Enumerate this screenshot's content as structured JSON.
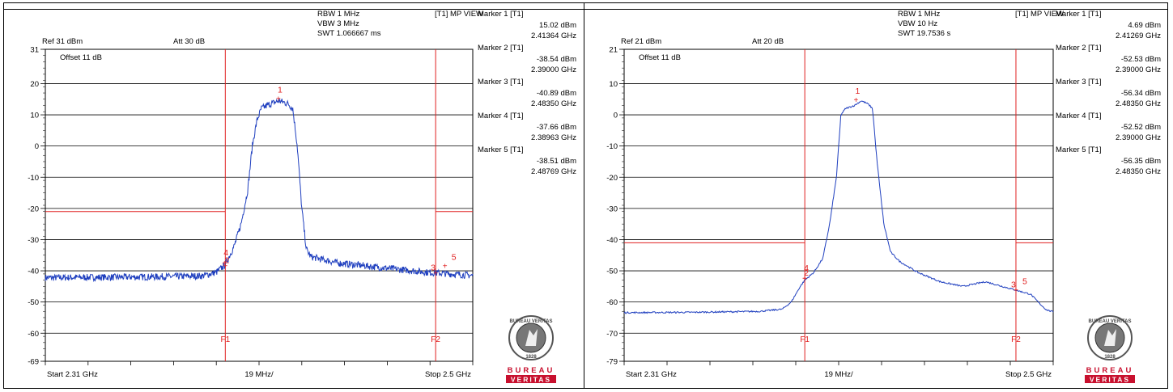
{
  "panels": [
    {
      "rbw": "RBW 1 MHz",
      "vbw": "VBW 3 MHz",
      "swt": "SWT 1.066667 ms",
      "view": "[T1] MP VIEW",
      "ref": "Ref 31 dBm",
      "att": "Att  30 dB",
      "offset": "Offset 11 dB",
      "start": "Start 2.31 GHz",
      "span": "19 MHz/",
      "stop": "Stop 2.5 GHz",
      "markers": [
        {
          "title": "Marker 1 [T1]",
          "level": "15.02 dBm",
          "freq": "2.41364 GHz"
        },
        {
          "title": "Marker 2 [T1]",
          "level": "-38.54 dBm",
          "freq": "2.39000 GHz"
        },
        {
          "title": "Marker 3 [T1]",
          "level": "-40.89 dBm",
          "freq": "2.48350 GHz"
        },
        {
          "title": "Marker 4 [T1]",
          "level": "-37.66 dBm",
          "freq": "2.38963 GHz"
        },
        {
          "title": "Marker 5 [T1]",
          "level": "-38.51 dBm",
          "freq": "2.48769 GHz"
        }
      ],
      "logo": {
        "top": "BUREAU VERITAS",
        "year": "1828",
        "bottom1": "BUREAU",
        "bottom2": "VERITAS"
      }
    },
    {
      "rbw": "RBW 1 MHz",
      "vbw": "VBW 10 Hz",
      "swt": "SWT 19.7536 s",
      "view": "[T1] MP VIEW",
      "ref": "Ref 21 dBm",
      "att": "Att  20 dB",
      "offset": "Offset 11 dB",
      "start": "Start 2.31 GHz",
      "span": "19 MHz/",
      "stop": "Stop 2.5 GHz",
      "markers": [
        {
          "title": "Marker 1 [T1]",
          "level": "4.69 dBm",
          "freq": "2.41269 GHz"
        },
        {
          "title": "Marker 2 [T1]",
          "level": "-52.53 dBm",
          "freq": "2.39000 GHz"
        },
        {
          "title": "Marker 3 [T1]",
          "level": "-56.34 dBm",
          "freq": "2.48350 GHz"
        },
        {
          "title": "Marker 4 [T1]",
          "level": "-52.52 dBm",
          "freq": "2.39000 GHz"
        },
        {
          "title": "Marker 5 [T1]",
          "level": "-56.35 dBm",
          "freq": "2.48350 GHz"
        }
      ],
      "logo": {
        "top": "BUREAU VERITAS",
        "year": "1828",
        "bottom1": "BUREAU",
        "bottom2": "VERITAS"
      }
    }
  ],
  "chart_data": [
    {
      "type": "line",
      "xlim_ghz": [
        2.31,
        2.5
      ],
      "ylim": [
        -69,
        31
      ],
      "y_ticks": [
        "31",
        "20",
        "10",
        "0",
        "-10",
        "-20",
        "-30",
        "-40",
        "-50",
        "-60",
        "-69"
      ],
      "y_tick_values": [
        31,
        20,
        10,
        0,
        -10,
        -20,
        -30,
        -40,
        -50,
        -60,
        -69
      ],
      "grid": true,
      "limit_level_dbm": -21,
      "f1_ghz": 2.39,
      "f1_label": "F1",
      "f2_ghz": 2.4835,
      "f2_label": "F2",
      "trace_color": "#1f3fbf",
      "marker_color": "#e02020",
      "trace": {
        "x": [
          2.31,
          2.33,
          2.35,
          2.37,
          2.38,
          2.386,
          2.39,
          2.394,
          2.397,
          2.4,
          2.402,
          2.404,
          2.406,
          2.41,
          2.414,
          2.418,
          2.42,
          2.422,
          2.424,
          2.426,
          2.428,
          2.44,
          2.46,
          2.48,
          2.49,
          2.5
        ],
        "y": [
          -42.2,
          -42.1,
          -42.0,
          -41.8,
          -41.6,
          -40.5,
          -38.0,
          -32.0,
          -25.0,
          -14.0,
          0.0,
          8.0,
          12.0,
          13.5,
          14.5,
          13.5,
          12.0,
          0.0,
          -20.0,
          -33.0,
          -35.5,
          -37.5,
          -39.0,
          -40.5,
          -41.0,
          -41.5
        ]
      },
      "noise": 1.1,
      "markers": [
        {
          "label": "1",
          "x": 2.41364,
          "y": 15.02
        },
        {
          "label": "2",
          "x": 2.39,
          "y": -38.54
        },
        {
          "label": "3",
          "x": 2.4835,
          "y": -40.89
        },
        {
          "label": "4",
          "x": 2.38963,
          "y": -37.66
        },
        {
          "label": "5",
          "x": 2.48769,
          "y": -38.51
        }
      ]
    },
    {
      "type": "line",
      "xlim_ghz": [
        2.31,
        2.5
      ],
      "ylim": [
        -79,
        21
      ],
      "y_ticks": [
        "21",
        "10",
        "0",
        "-10",
        "-20",
        "-30",
        "-40",
        "-50",
        "-60",
        "-70",
        "-79"
      ],
      "y_tick_values": [
        21,
        10,
        0,
        -10,
        -20,
        -30,
        -40,
        -50,
        -60,
        -70,
        -79
      ],
      "grid": true,
      "limit_level_dbm": -41,
      "f1_ghz": 2.39,
      "f1_label": "F1",
      "f2_ghz": 2.4835,
      "f2_label": "F2",
      "trace_color": "#1f3fbf",
      "marker_color": "#e02020",
      "trace": {
        "x": [
          2.31,
          2.34,
          2.37,
          2.38,
          2.384,
          2.386,
          2.388,
          2.39,
          2.394,
          2.398,
          2.401,
          2.404,
          2.406,
          2.408,
          2.412,
          2.415,
          2.418,
          2.42,
          2.422,
          2.425,
          2.428,
          2.432,
          2.44,
          2.45,
          2.46,
          2.47,
          2.48,
          2.4835,
          2.49,
          2.494,
          2.497,
          2.5
        ],
        "y": [
          -63.4,
          -63.3,
          -63.0,
          -62.3,
          -60.0,
          -57.5,
          -55.0,
          -53.0,
          -50.5,
          -46.0,
          -35.0,
          -20.0,
          0.0,
          2.0,
          3.0,
          4.5,
          3.5,
          2.0,
          -15.0,
          -35.0,
          -44.0,
          -47.0,
          -50.5,
          -53.5,
          -55.0,
          -53.5,
          -55.5,
          -56.2,
          -57.5,
          -60.5,
          -62.5,
          -63.2
        ]
      },
      "noise": 0.25,
      "markers": [
        {
          "label": "1",
          "x": 2.41269,
          "y": 4.69
        },
        {
          "label": "2",
          "x": 2.39,
          "y": -52.53
        },
        {
          "label": "3",
          "x": 2.4835,
          "y": -56.34
        },
        {
          "label": "4",
          "x": 2.39,
          "y": -52.52
        },
        {
          "label": "5",
          "x": 2.4835,
          "y": -56.35
        }
      ]
    }
  ]
}
